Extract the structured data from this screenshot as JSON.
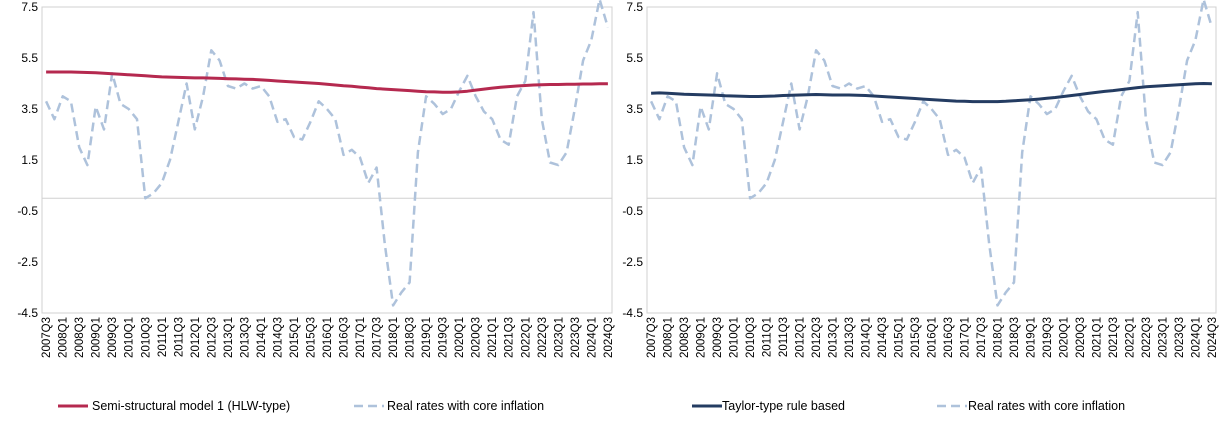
{
  "chart_data": [
    {
      "type": "line",
      "title": "",
      "xlabel": "",
      "ylabel": "",
      "ylim": [
        -4.5,
        7.5
      ],
      "yticks": [
        7.5,
        5.5,
        3.5,
        1.5,
        -0.5,
        -2.5,
        -4.5
      ],
      "ytick_labels": [
        "7.5",
        "5.5",
        "3.5",
        "1.5",
        "-0.5",
        "-2.5",
        "-4.5"
      ],
      "grid": false,
      "zero_line": true,
      "legend_position": "bottom",
      "categories": [
        "2007Q3",
        "2007Q4",
        "2008Q1",
        "2008Q2",
        "2008Q3",
        "2008Q4",
        "2009Q1",
        "2009Q2",
        "2009Q3",
        "2009Q4",
        "2010Q1",
        "2010Q2",
        "2010Q3",
        "2010Q4",
        "2011Q1",
        "2011Q2",
        "2011Q3",
        "2011Q4",
        "2012Q1",
        "2012Q2",
        "2012Q3",
        "2012Q4",
        "2013Q1",
        "2013Q2",
        "2013Q3",
        "2013Q4",
        "2014Q1",
        "2014Q2",
        "2014Q3",
        "2014Q4",
        "2015Q1",
        "2015Q2",
        "2015Q3",
        "2015Q4",
        "2016Q1",
        "2016Q2",
        "2016Q3",
        "2016Q4",
        "2017Q1",
        "2017Q2",
        "2017Q3",
        "2017Q4",
        "2018Q1",
        "2018Q2",
        "2018Q3",
        "2018Q4",
        "2019Q1",
        "2019Q2",
        "2019Q3",
        "2019Q4",
        "2020Q1",
        "2020Q2",
        "2020Q3",
        "2020Q4",
        "2021Q1",
        "2021Q2",
        "2021Q3",
        "2021Q4",
        "2022Q1",
        "2022Q2",
        "2022Q3",
        "2022Q4",
        "2023Q1",
        "2023Q2",
        "2023Q3",
        "2023Q4",
        "2024Q1",
        "2024Q2",
        "2024Q3"
      ],
      "tick_labels": [
        "2007Q3",
        "2008Q1",
        "2008Q3",
        "2009Q1",
        "2009Q3",
        "2010Q1",
        "2010Q3",
        "2011Q1",
        "2011Q3",
        "2012Q1",
        "2012Q3",
        "2013Q1",
        "2013Q3",
        "2014Q1",
        "2014Q3",
        "2015Q1",
        "2015Q3",
        "2016Q1",
        "2016Q3",
        "2017Q1",
        "2017Q3",
        "2018Q1",
        "2018Q3",
        "2019Q1",
        "2019Q3",
        "2020Q1",
        "2020Q3",
        "2021Q1",
        "2021Q3",
        "2022Q1",
        "2022Q3",
        "2023Q1",
        "2023Q3",
        "2024Q1",
        "2024Q3"
      ],
      "series": [
        {
          "name": "Semi-structural model 1 (HLW-type)",
          "color": "#b5294f",
          "style": "solid",
          "values": [
            4.95,
            4.95,
            4.95,
            4.95,
            4.94,
            4.93,
            4.92,
            4.9,
            4.88,
            4.86,
            4.84,
            4.82,
            4.8,
            4.78,
            4.76,
            4.75,
            4.74,
            4.73,
            4.72,
            4.72,
            4.71,
            4.7,
            4.69,
            4.68,
            4.67,
            4.66,
            4.64,
            4.62,
            4.6,
            4.58,
            4.56,
            4.54,
            4.52,
            4.5,
            4.47,
            4.44,
            4.41,
            4.39,
            4.36,
            4.33,
            4.3,
            4.28,
            4.26,
            4.24,
            4.22,
            4.2,
            4.18,
            4.17,
            4.16,
            4.16,
            4.17,
            4.2,
            4.24,
            4.28,
            4.32,
            4.35,
            4.38,
            4.4,
            4.42,
            4.44,
            4.45,
            4.46,
            4.46,
            4.47,
            4.47,
            4.48,
            4.48,
            4.49,
            4.49
          ]
        },
        {
          "name": "Real rates with core inflation",
          "color": "#aec2db",
          "style": "dashed",
          "values": [
            3.8,
            3.1,
            4.0,
            3.8,
            2.0,
            1.3,
            3.6,
            2.7,
            4.9,
            3.7,
            3.5,
            3.1,
            0.0,
            0.2,
            0.6,
            1.5,
            3.0,
            4.5,
            2.7,
            4.0,
            5.8,
            5.4,
            4.4,
            4.3,
            4.5,
            4.3,
            4.4,
            4.0,
            3.0,
            3.1,
            2.4,
            2.3,
            3.0,
            3.8,
            3.5,
            3.1,
            1.7,
            1.9,
            1.6,
            0.6,
            1.2,
            -1.8,
            -4.2,
            -3.7,
            -3.3,
            1.8,
            4.0,
            3.7,
            3.3,
            3.5,
            4.2,
            4.8,
            4.0,
            3.4,
            3.1,
            2.3,
            2.1,
            4.0,
            4.6,
            7.3,
            3.1,
            1.4,
            1.3,
            1.8,
            3.5,
            5.4,
            6.2,
            7.8,
            6.7
          ]
        }
      ]
    },
    {
      "type": "line",
      "title": "",
      "xlabel": "",
      "ylabel": "",
      "ylim": [
        -4.5,
        7.5
      ],
      "yticks": [
        7.5,
        5.5,
        3.5,
        1.5,
        -0.5,
        -2.5,
        -4.5
      ],
      "ytick_labels": [
        "7.5",
        "5.5",
        "3.5",
        "1.5",
        "-0.5",
        "-2.5",
        "-4.5"
      ],
      "grid": false,
      "zero_line": true,
      "legend_position": "bottom",
      "categories": [
        "2007Q3",
        "2007Q4",
        "2008Q1",
        "2008Q2",
        "2008Q3",
        "2008Q4",
        "2009Q1",
        "2009Q2",
        "2009Q3",
        "2009Q4",
        "2010Q1",
        "2010Q2",
        "2010Q3",
        "2010Q4",
        "2011Q1",
        "2011Q2",
        "2011Q3",
        "2011Q4",
        "2012Q1",
        "2012Q2",
        "2012Q3",
        "2012Q4",
        "2013Q1",
        "2013Q2",
        "2013Q3",
        "2013Q4",
        "2014Q1",
        "2014Q2",
        "2014Q3",
        "2014Q4",
        "2015Q1",
        "2015Q2",
        "2015Q3",
        "2015Q4",
        "2016Q1",
        "2016Q2",
        "2016Q3",
        "2016Q4",
        "2017Q1",
        "2017Q2",
        "2017Q3",
        "2017Q4",
        "2018Q1",
        "2018Q2",
        "2018Q3",
        "2018Q4",
        "2019Q1",
        "2019Q2",
        "2019Q3",
        "2019Q4",
        "2020Q1",
        "2020Q2",
        "2020Q3",
        "2020Q4",
        "2021Q1",
        "2021Q2",
        "2021Q3",
        "2021Q4",
        "2022Q1",
        "2022Q2",
        "2022Q3",
        "2022Q4",
        "2023Q1",
        "2023Q2",
        "2023Q3",
        "2023Q4",
        "2024Q1",
        "2024Q2",
        "2024Q3"
      ],
      "tick_labels": [
        "2007Q3",
        "2008Q1",
        "2008Q3",
        "2009Q1",
        "2009Q3",
        "2010Q1",
        "2010Q3",
        "2011Q1",
        "2011Q3",
        "2012Q1",
        "2012Q3",
        "2013Q1",
        "2013Q3",
        "2014Q1",
        "2014Q3",
        "2015Q1",
        "2015Q3",
        "2016Q1",
        "2016Q3",
        "2017Q1",
        "2017Q3",
        "2018Q1",
        "2018Q3",
        "2019Q1",
        "2019Q3",
        "2020Q1",
        "2020Q3",
        "2021Q1",
        "2021Q3",
        "2022Q1",
        "2022Q3",
        "2023Q1",
        "2023Q3",
        "2024Q1",
        "2024Q3"
      ],
      "series": [
        {
          "name": "Taylor-type rule based",
          "color": "#243c62",
          "style": "solid",
          "values": [
            4.12,
            4.13,
            4.12,
            4.1,
            4.08,
            4.07,
            4.06,
            4.05,
            4.04,
            4.02,
            4.01,
            4.0,
            3.99,
            3.99,
            4.0,
            4.01,
            4.03,
            4.04,
            4.05,
            4.06,
            4.07,
            4.06,
            4.05,
            4.05,
            4.05,
            4.04,
            4.03,
            4.01,
            3.99,
            3.97,
            3.95,
            3.93,
            3.91,
            3.89,
            3.87,
            3.85,
            3.83,
            3.81,
            3.8,
            3.79,
            3.79,
            3.79,
            3.79,
            3.8,
            3.82,
            3.84,
            3.86,
            3.89,
            3.92,
            3.95,
            3.99,
            4.03,
            4.07,
            4.11,
            4.15,
            4.19,
            4.22,
            4.26,
            4.3,
            4.34,
            4.37,
            4.39,
            4.41,
            4.43,
            4.45,
            4.47,
            4.49,
            4.5,
            4.49
          ]
        },
        {
          "name": "Real rates with core inflation",
          "color": "#aec2db",
          "style": "dashed",
          "values": [
            3.8,
            3.1,
            4.0,
            3.8,
            2.0,
            1.3,
            3.6,
            2.7,
            4.9,
            3.7,
            3.5,
            3.1,
            0.0,
            0.2,
            0.6,
            1.5,
            3.0,
            4.5,
            2.7,
            4.0,
            5.8,
            5.4,
            4.4,
            4.3,
            4.5,
            4.3,
            4.4,
            4.0,
            3.0,
            3.1,
            2.4,
            2.3,
            3.0,
            3.8,
            3.5,
            3.1,
            1.7,
            1.9,
            1.6,
            0.6,
            1.2,
            -1.8,
            -4.2,
            -3.7,
            -3.3,
            1.8,
            4.0,
            3.7,
            3.3,
            3.5,
            4.2,
            4.8,
            4.0,
            3.4,
            3.1,
            2.3,
            2.1,
            4.0,
            4.6,
            7.3,
            3.1,
            1.4,
            1.3,
            1.8,
            3.5,
            5.4,
            6.2,
            7.8,
            6.7
          ]
        }
      ]
    }
  ]
}
